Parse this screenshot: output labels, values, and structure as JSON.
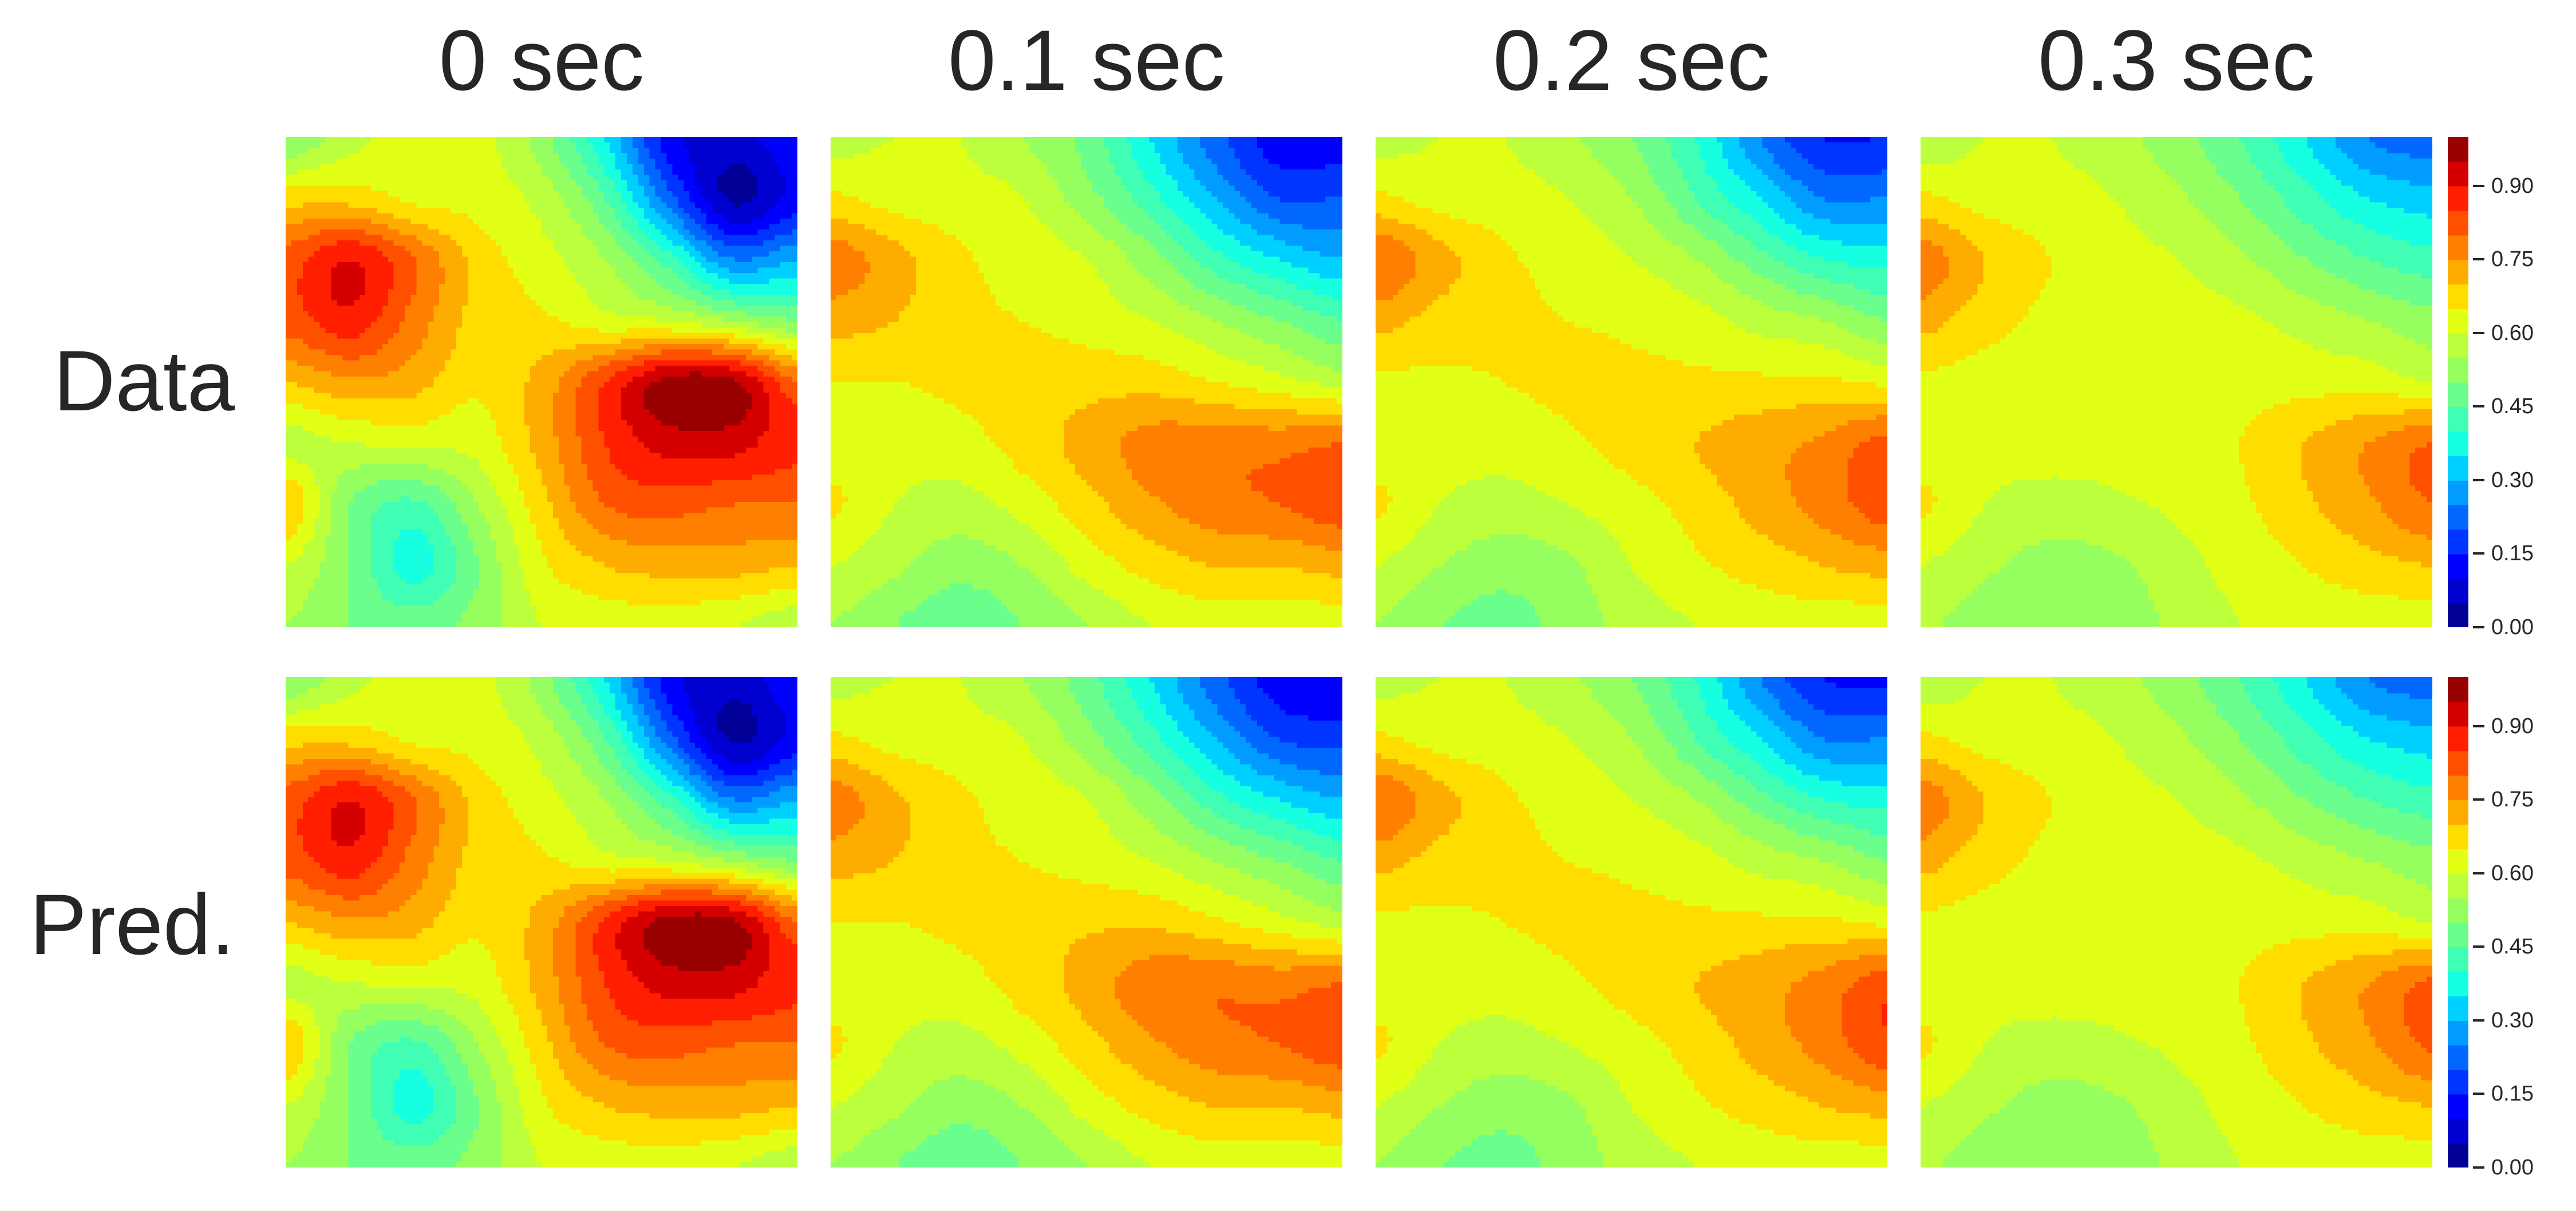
{
  "chart_data": {
    "type": "heatmap",
    "subtype": "filled-contour",
    "column_titles": [
      "0 sec",
      "0.1 sec",
      "0.2 sec",
      "0.3 sec"
    ],
    "row_labels": [
      "Data",
      "Pred."
    ],
    "colorbar": {
      "range": [
        0.0,
        1.0
      ],
      "levels_step": 0.05,
      "ticks": [
        "0.00",
        "0.15",
        "0.30",
        "0.45",
        "0.60",
        "0.75",
        "0.90"
      ],
      "tick_values": [
        0.0,
        0.15,
        0.3,
        0.45,
        0.6,
        0.75,
        0.9
      ],
      "colors": [
        "#000096",
        "#0000d0",
        "#0000ff",
        "#0034ff",
        "#0068ff",
        "#009cff",
        "#00d0ff",
        "#16ffe0",
        "#40ffb5",
        "#6aff8c",
        "#96ff60",
        "#bcff3c",
        "#e2ff16",
        "#ffdd00",
        "#ffac00",
        "#ff7f00",
        "#ff5000",
        "#ff1e00",
        "#d40000",
        "#990000"
      ]
    },
    "grid_note": "9x9 sampled values, rows top-to-bottom, columns left-to-right",
    "rows": [
      {
        "label": "Data",
        "panels": [
          [
            [
              0.5,
              0.58,
              0.62,
              0.62,
              0.52,
              0.35,
              0.12,
              0.08,
              0.14
            ],
            [
              0.68,
              0.68,
              0.64,
              0.63,
              0.58,
              0.45,
              0.22,
              0.04,
              0.12
            ],
            [
              0.82,
              0.9,
              0.8,
              0.68,
              0.62,
              0.55,
              0.42,
              0.25,
              0.3
            ],
            [
              0.82,
              0.88,
              0.78,
              0.68,
              0.66,
              0.62,
              0.6,
              0.55,
              0.5
            ],
            [
              0.7,
              0.74,
              0.72,
              0.66,
              0.72,
              0.85,
              0.97,
              0.96,
              0.8
            ],
            [
              0.58,
              0.6,
              0.61,
              0.62,
              0.72,
              0.85,
              0.92,
              0.92,
              0.86
            ],
            [
              0.7,
              0.5,
              0.44,
              0.55,
              0.68,
              0.8,
              0.82,
              0.8,
              0.8
            ],
            [
              0.6,
              0.5,
              0.38,
              0.5,
              0.64,
              0.7,
              0.72,
              0.72,
              0.7
            ],
            [
              0.55,
              0.5,
              0.48,
              0.52,
              0.6,
              0.62,
              0.62,
              0.6,
              0.56
            ]
          ],
          [
            [
              0.58,
              0.6,
              0.6,
              0.55,
              0.48,
              0.35,
              0.22,
              0.12,
              0.12
            ],
            [
              0.66,
              0.63,
              0.62,
              0.6,
              0.52,
              0.42,
              0.3,
              0.2,
              0.2
            ],
            [
              0.78,
              0.72,
              0.66,
              0.63,
              0.6,
              0.52,
              0.42,
              0.35,
              0.3
            ],
            [
              0.72,
              0.7,
              0.66,
              0.65,
              0.63,
              0.6,
              0.55,
              0.5,
              0.45
            ],
            [
              0.65,
              0.65,
              0.66,
              0.67,
              0.68,
              0.68,
              0.65,
              0.62,
              0.58
            ],
            [
              0.62,
              0.62,
              0.63,
              0.67,
              0.72,
              0.77,
              0.78,
              0.78,
              0.8
            ],
            [
              0.66,
              0.6,
              0.58,
              0.62,
              0.68,
              0.74,
              0.78,
              0.8,
              0.83
            ],
            [
              0.6,
              0.56,
              0.52,
              0.55,
              0.62,
              0.67,
              0.7,
              0.7,
              0.72
            ],
            [
              0.55,
              0.5,
              0.46,
              0.5,
              0.55,
              0.6,
              0.62,
              0.62,
              0.62
            ]
          ],
          [
            [
              0.58,
              0.6,
              0.6,
              0.56,
              0.5,
              0.4,
              0.25,
              0.15,
              0.15
            ],
            [
              0.66,
              0.63,
              0.62,
              0.6,
              0.55,
              0.45,
              0.35,
              0.25,
              0.25
            ],
            [
              0.8,
              0.72,
              0.66,
              0.63,
              0.6,
              0.55,
              0.47,
              0.4,
              0.38
            ],
            [
              0.72,
              0.68,
              0.66,
              0.65,
              0.64,
              0.62,
              0.58,
              0.55,
              0.5
            ],
            [
              0.64,
              0.64,
              0.65,
              0.66,
              0.66,
              0.66,
              0.66,
              0.66,
              0.64
            ],
            [
              0.62,
              0.62,
              0.62,
              0.64,
              0.67,
              0.7,
              0.73,
              0.76,
              0.82
            ],
            [
              0.66,
              0.6,
              0.58,
              0.6,
              0.63,
              0.67,
              0.72,
              0.77,
              0.83
            ],
            [
              0.6,
              0.55,
              0.52,
              0.54,
              0.6,
              0.64,
              0.67,
              0.7,
              0.72
            ],
            [
              0.55,
              0.5,
              0.48,
              0.52,
              0.57,
              0.6,
              0.62,
              0.62,
              0.62
            ]
          ],
          [
            [
              0.56,
              0.6,
              0.6,
              0.57,
              0.52,
              0.45,
              0.35,
              0.25,
              0.22
            ],
            [
              0.66,
              0.63,
              0.62,
              0.6,
              0.56,
              0.5,
              0.42,
              0.35,
              0.32
            ],
            [
              0.78,
              0.7,
              0.65,
              0.62,
              0.6,
              0.56,
              0.5,
              0.45,
              0.42
            ],
            [
              0.72,
              0.67,
              0.64,
              0.63,
              0.62,
              0.61,
              0.58,
              0.55,
              0.52
            ],
            [
              0.64,
              0.63,
              0.63,
              0.63,
              0.63,
              0.63,
              0.63,
              0.63,
              0.6
            ],
            [
              0.62,
              0.62,
              0.62,
              0.62,
              0.63,
              0.65,
              0.7,
              0.75,
              0.8
            ],
            [
              0.66,
              0.6,
              0.58,
              0.59,
              0.61,
              0.64,
              0.69,
              0.74,
              0.8
            ],
            [
              0.6,
              0.56,
              0.53,
              0.54,
              0.58,
              0.62,
              0.65,
              0.68,
              0.7
            ],
            [
              0.56,
              0.52,
              0.5,
              0.52,
              0.56,
              0.6,
              0.62,
              0.62,
              0.62
            ]
          ]
        ]
      },
      {
        "label": "Pred.",
        "panels": [
          [
            [
              0.5,
              0.58,
              0.62,
              0.62,
              0.52,
              0.35,
              0.12,
              0.07,
              0.14
            ],
            [
              0.68,
              0.68,
              0.64,
              0.63,
              0.58,
              0.45,
              0.22,
              0.04,
              0.12
            ],
            [
              0.82,
              0.9,
              0.8,
              0.68,
              0.62,
              0.55,
              0.42,
              0.25,
              0.3
            ],
            [
              0.82,
              0.88,
              0.78,
              0.68,
              0.66,
              0.62,
              0.6,
              0.55,
              0.5
            ],
            [
              0.7,
              0.74,
              0.72,
              0.66,
              0.72,
              0.86,
              0.97,
              0.96,
              0.8
            ],
            [
              0.58,
              0.6,
              0.61,
              0.62,
              0.72,
              0.85,
              0.92,
              0.92,
              0.86
            ],
            [
              0.7,
              0.5,
              0.44,
              0.55,
              0.68,
              0.8,
              0.82,
              0.8,
              0.8
            ],
            [
              0.6,
              0.5,
              0.38,
              0.5,
              0.64,
              0.7,
              0.72,
              0.72,
              0.7
            ],
            [
              0.55,
              0.5,
              0.48,
              0.52,
              0.6,
              0.62,
              0.62,
              0.6,
              0.56
            ]
          ],
          [
            [
              0.58,
              0.6,
              0.6,
              0.55,
              0.47,
              0.35,
              0.22,
              0.12,
              0.1
            ],
            [
              0.66,
              0.63,
              0.62,
              0.6,
              0.52,
              0.42,
              0.3,
              0.2,
              0.18
            ],
            [
              0.78,
              0.71,
              0.66,
              0.63,
              0.6,
              0.52,
              0.42,
              0.35,
              0.3
            ],
            [
              0.72,
              0.7,
              0.66,
              0.65,
              0.63,
              0.6,
              0.55,
              0.5,
              0.45
            ],
            [
              0.65,
              0.65,
              0.66,
              0.67,
              0.69,
              0.69,
              0.66,
              0.62,
              0.58
            ],
            [
              0.62,
              0.62,
              0.63,
              0.67,
              0.72,
              0.78,
              0.79,
              0.78,
              0.8
            ],
            [
              0.66,
              0.6,
              0.58,
              0.62,
              0.68,
              0.74,
              0.78,
              0.8,
              0.83
            ],
            [
              0.6,
              0.56,
              0.52,
              0.55,
              0.62,
              0.67,
              0.7,
              0.7,
              0.72
            ],
            [
              0.55,
              0.5,
              0.46,
              0.5,
              0.55,
              0.6,
              0.62,
              0.62,
              0.62
            ]
          ],
          [
            [
              0.58,
              0.6,
              0.6,
              0.56,
              0.5,
              0.4,
              0.25,
              0.15,
              0.14
            ],
            [
              0.66,
              0.63,
              0.62,
              0.6,
              0.55,
              0.45,
              0.35,
              0.25,
              0.25
            ],
            [
              0.8,
              0.72,
              0.66,
              0.63,
              0.6,
              0.55,
              0.47,
              0.4,
              0.38
            ],
            [
              0.72,
              0.68,
              0.66,
              0.65,
              0.64,
              0.62,
              0.58,
              0.55,
              0.5
            ],
            [
              0.64,
              0.64,
              0.65,
              0.66,
              0.66,
              0.66,
              0.66,
              0.66,
              0.64
            ],
            [
              0.62,
              0.62,
              0.62,
              0.64,
              0.67,
              0.7,
              0.73,
              0.77,
              0.83
            ],
            [
              0.66,
              0.6,
              0.58,
              0.6,
              0.63,
              0.67,
              0.72,
              0.77,
              0.84
            ],
            [
              0.6,
              0.55,
              0.52,
              0.54,
              0.6,
              0.64,
              0.67,
              0.7,
              0.72
            ],
            [
              0.55,
              0.5,
              0.48,
              0.52,
              0.57,
              0.6,
              0.62,
              0.62,
              0.62
            ]
          ],
          [
            [
              0.56,
              0.6,
              0.6,
              0.57,
              0.52,
              0.45,
              0.35,
              0.25,
              0.22
            ],
            [
              0.66,
              0.63,
              0.62,
              0.6,
              0.56,
              0.5,
              0.42,
              0.35,
              0.32
            ],
            [
              0.78,
              0.7,
              0.65,
              0.62,
              0.6,
              0.56,
              0.5,
              0.45,
              0.42
            ],
            [
              0.72,
              0.67,
              0.64,
              0.63,
              0.62,
              0.61,
              0.58,
              0.55,
              0.52
            ],
            [
              0.64,
              0.63,
              0.63,
              0.63,
              0.63,
              0.63,
              0.63,
              0.63,
              0.6
            ],
            [
              0.62,
              0.62,
              0.62,
              0.62,
              0.63,
              0.65,
              0.7,
              0.75,
              0.81
            ],
            [
              0.66,
              0.6,
              0.58,
              0.59,
              0.61,
              0.64,
              0.69,
              0.74,
              0.81
            ],
            [
              0.6,
              0.56,
              0.53,
              0.54,
              0.58,
              0.62,
              0.65,
              0.68,
              0.7
            ],
            [
              0.56,
              0.52,
              0.5,
              0.52,
              0.56,
              0.6,
              0.62,
              0.62,
              0.62
            ]
          ]
        ]
      }
    ]
  }
}
